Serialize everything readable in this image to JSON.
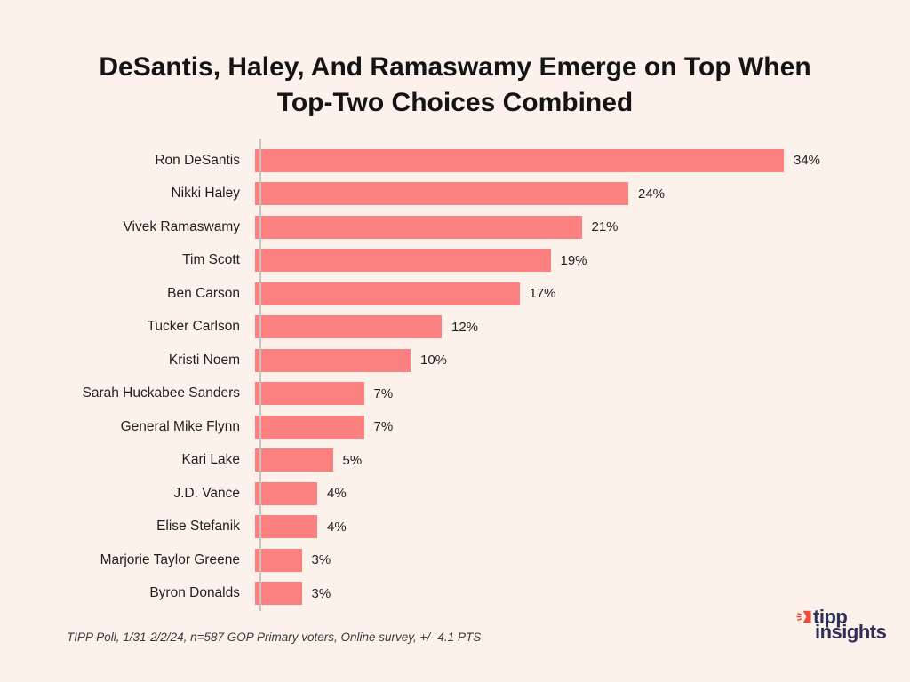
{
  "page": {
    "background_color": "#FCF2EB"
  },
  "title": {
    "line1": "DeSantis, Haley, And Ramaswamy Emerge on Top When",
    "line2": "Top-Two Choices Combined"
  },
  "chart_data": {
    "type": "bar",
    "orientation": "horizontal",
    "title": "DeSantis, Haley, And Ramaswamy Emerge on Top When Top-Two Choices Combined",
    "xlabel": "",
    "ylabel": "",
    "categories": [
      "Ron DeSantis",
      "Nikki Haley",
      "Vivek Ramaswamy",
      "Tim Scott",
      "Ben Carson",
      "Tucker Carlson",
      "Kristi Noem",
      "Sarah Huckabee Sanders",
      "General Mike Flynn",
      "Kari Lake",
      "J.D. Vance",
      "Elise Stefanik",
      "Marjorie Taylor Greene",
      "Byron Donalds"
    ],
    "values": [
      34,
      24,
      21,
      19,
      17,
      12,
      10,
      7,
      7,
      5,
      4,
      4,
      3,
      3
    ],
    "value_suffix": "%",
    "xlim": [
      0,
      36
    ],
    "grid": "off",
    "legend": "none",
    "bar_color": "#FC8080",
    "axis_line_color": "#C6C3C0",
    "label_color": "#1F1F1F"
  },
  "footer": {
    "source_note": "TIPP Poll, 1/31-2/2/24, n=587 GOP Primary voters, Online survey, +/- 4.1 PTS"
  },
  "logo": {
    "line1": "tipp",
    "line2": "insights",
    "icon": "tipp-arrow-icon",
    "text_color": "#2D3157",
    "icon_color": "#EE4B36"
  }
}
